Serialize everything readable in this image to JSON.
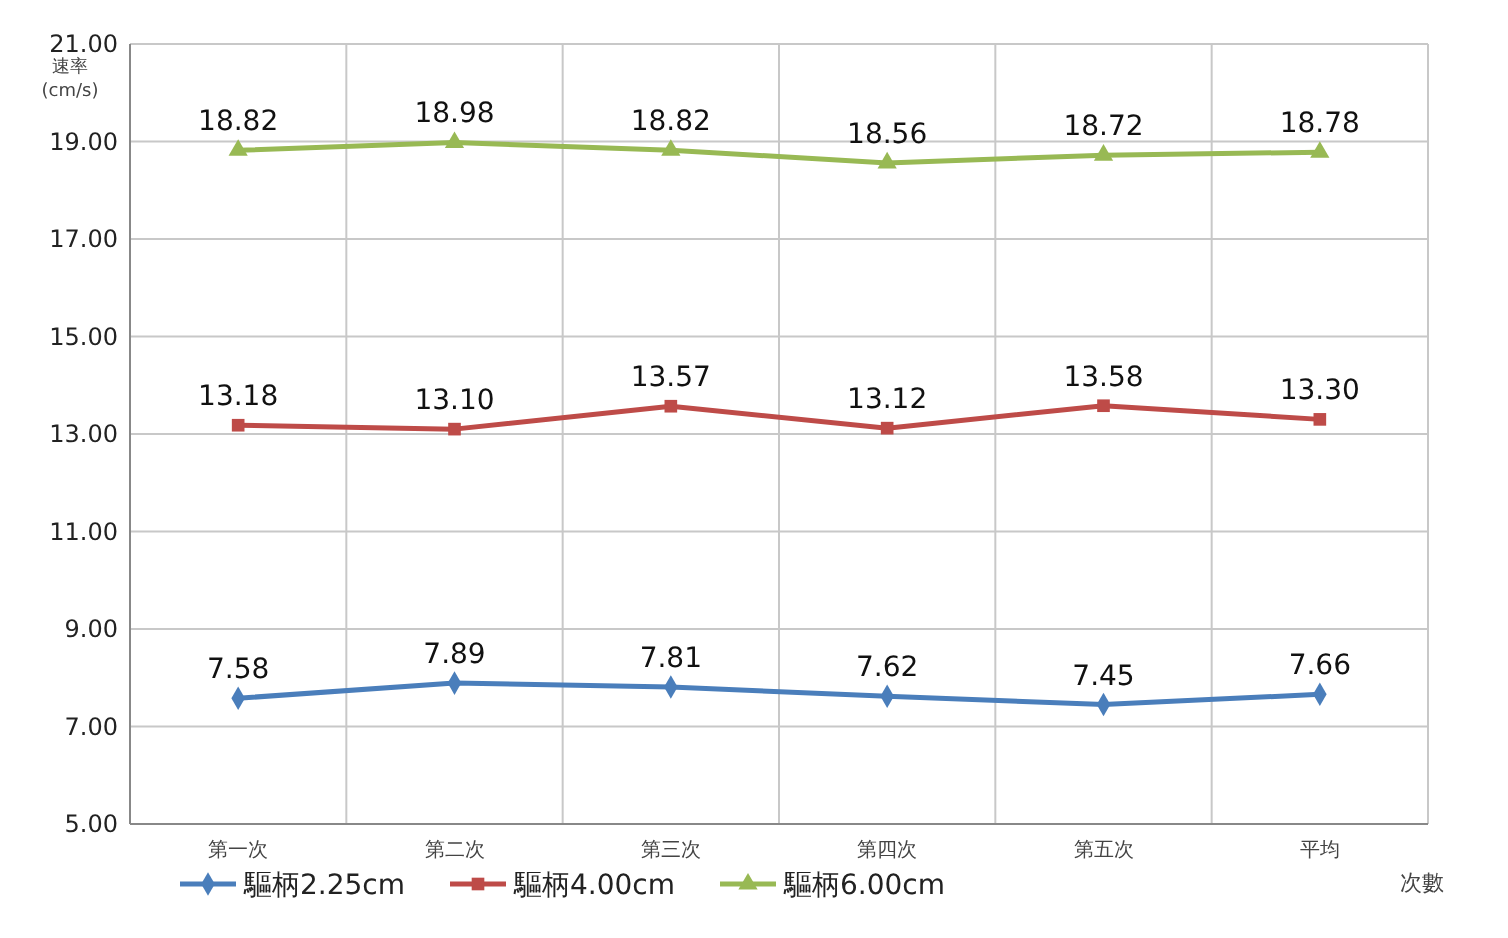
{
  "chart_data": {
    "type": "line",
    "ylabel": "速率\n(cm/s)",
    "xlabel": "次數",
    "categories": [
      "第一次",
      "第二次",
      "第三次",
      "第四次",
      "第五次",
      "平均"
    ],
    "series": [
      {
        "name": "驅柄2.25cm",
        "color": "#4a7ebb",
        "marker": "diamond",
        "values": [
          7.58,
          7.89,
          7.81,
          7.62,
          7.45,
          7.66
        ],
        "value_labels": [
          "7.58",
          "7.89",
          "7.81",
          "7.62",
          "7.45",
          "7.66"
        ]
      },
      {
        "name": "驅柄4.00cm",
        "color": "#be4b48",
        "marker": "square",
        "values": [
          13.18,
          13.1,
          13.57,
          13.12,
          13.58,
          13.3
        ],
        "value_labels": [
          "13.18",
          "13.10",
          "13.57",
          "13.12",
          "13.58",
          "13.30"
        ]
      },
      {
        "name": "驅柄6.00cm",
        "color": "#98b954",
        "marker": "triangle",
        "values": [
          18.82,
          18.98,
          18.82,
          18.56,
          18.72,
          18.78
        ],
        "value_labels": [
          "18.82",
          "18.98",
          "18.82",
          "18.56",
          "18.72",
          "18.78"
        ]
      }
    ],
    "ylim": [
      5,
      21
    ],
    "yticks": [
      {
        "value": 5,
        "label": "5.00"
      },
      {
        "value": 7,
        "label": "7.00"
      },
      {
        "value": 9,
        "label": "9.00"
      },
      {
        "value": 11,
        "label": "11.00"
      },
      {
        "value": 13,
        "label": "13.00"
      },
      {
        "value": 15,
        "label": "15.00"
      },
      {
        "value": 17,
        "label": "17.00"
      },
      {
        "value": 19,
        "label": "19.00"
      },
      {
        "value": 21,
        "label": "21.00"
      }
    ],
    "grid": true,
    "legend": "bottom left"
  }
}
